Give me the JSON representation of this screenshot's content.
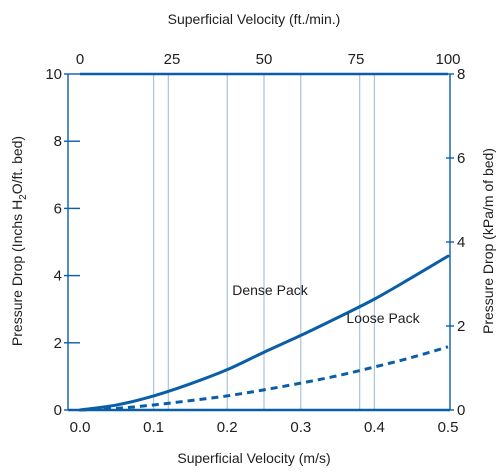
{
  "chart_data": {
    "type": "line",
    "x_bottom": {
      "label": "Superficial Velocity (m/s)",
      "range": [
        0,
        0.5
      ],
      "ticks": [
        0.0,
        0.1,
        0.2,
        0.3,
        0.4,
        0.5
      ],
      "tick_labels": [
        "0.0",
        "0.1",
        "0.2",
        "0.3",
        "0.4",
        "0.5"
      ]
    },
    "x_top": {
      "label": "Superficial Velocity (ft./min.)",
      "range": [
        0,
        100
      ],
      "ticks": [
        0,
        25,
        50,
        75,
        100
      ],
      "tick_labels": [
        "0",
        "25",
        "50",
        "75",
        "100"
      ]
    },
    "y_left": {
      "label_parts": [
        "Pressure Drop (Inchs H",
        "2",
        "O/ft. bed)"
      ],
      "range": [
        0,
        10
      ],
      "ticks": [
        0,
        2,
        4,
        6,
        8,
        10
      ],
      "tick_labels": [
        "0",
        "2",
        "4",
        "6",
        "8",
        "10"
      ]
    },
    "y_right": {
      "label": "Pressure Drop (kPa/m of bed)",
      "range": [
        0,
        8
      ],
      "ticks": [
        0,
        2,
        4,
        6,
        8
      ],
      "tick_labels": [
        "0",
        "2",
        "4",
        "6",
        "8"
      ]
    },
    "grid_x": [
      0.1,
      0.12,
      0.2,
      0.25,
      0.3,
      0.38,
      0.4
    ],
    "series": [
      {
        "name": "Dense Pack",
        "style": "solid",
        "color": "#0a5ea8",
        "x": [
          0.0,
          0.05,
          0.1,
          0.15,
          0.2,
          0.25,
          0.3,
          0.35,
          0.4,
          0.45,
          0.5
        ],
        "y": [
          0.0,
          0.15,
          0.42,
          0.78,
          1.2,
          1.72,
          2.22,
          2.75,
          3.3,
          3.93,
          4.58
        ]
      },
      {
        "name": "Loose Pack",
        "style": "dashed",
        "color": "#0a5ea8",
        "x": [
          0.0,
          0.05,
          0.1,
          0.15,
          0.2,
          0.25,
          0.3,
          0.35,
          0.4,
          0.45,
          0.5
        ],
        "y": [
          0.0,
          0.05,
          0.15,
          0.28,
          0.42,
          0.6,
          0.8,
          1.02,
          1.28,
          1.56,
          1.88
        ]
      }
    ]
  }
}
